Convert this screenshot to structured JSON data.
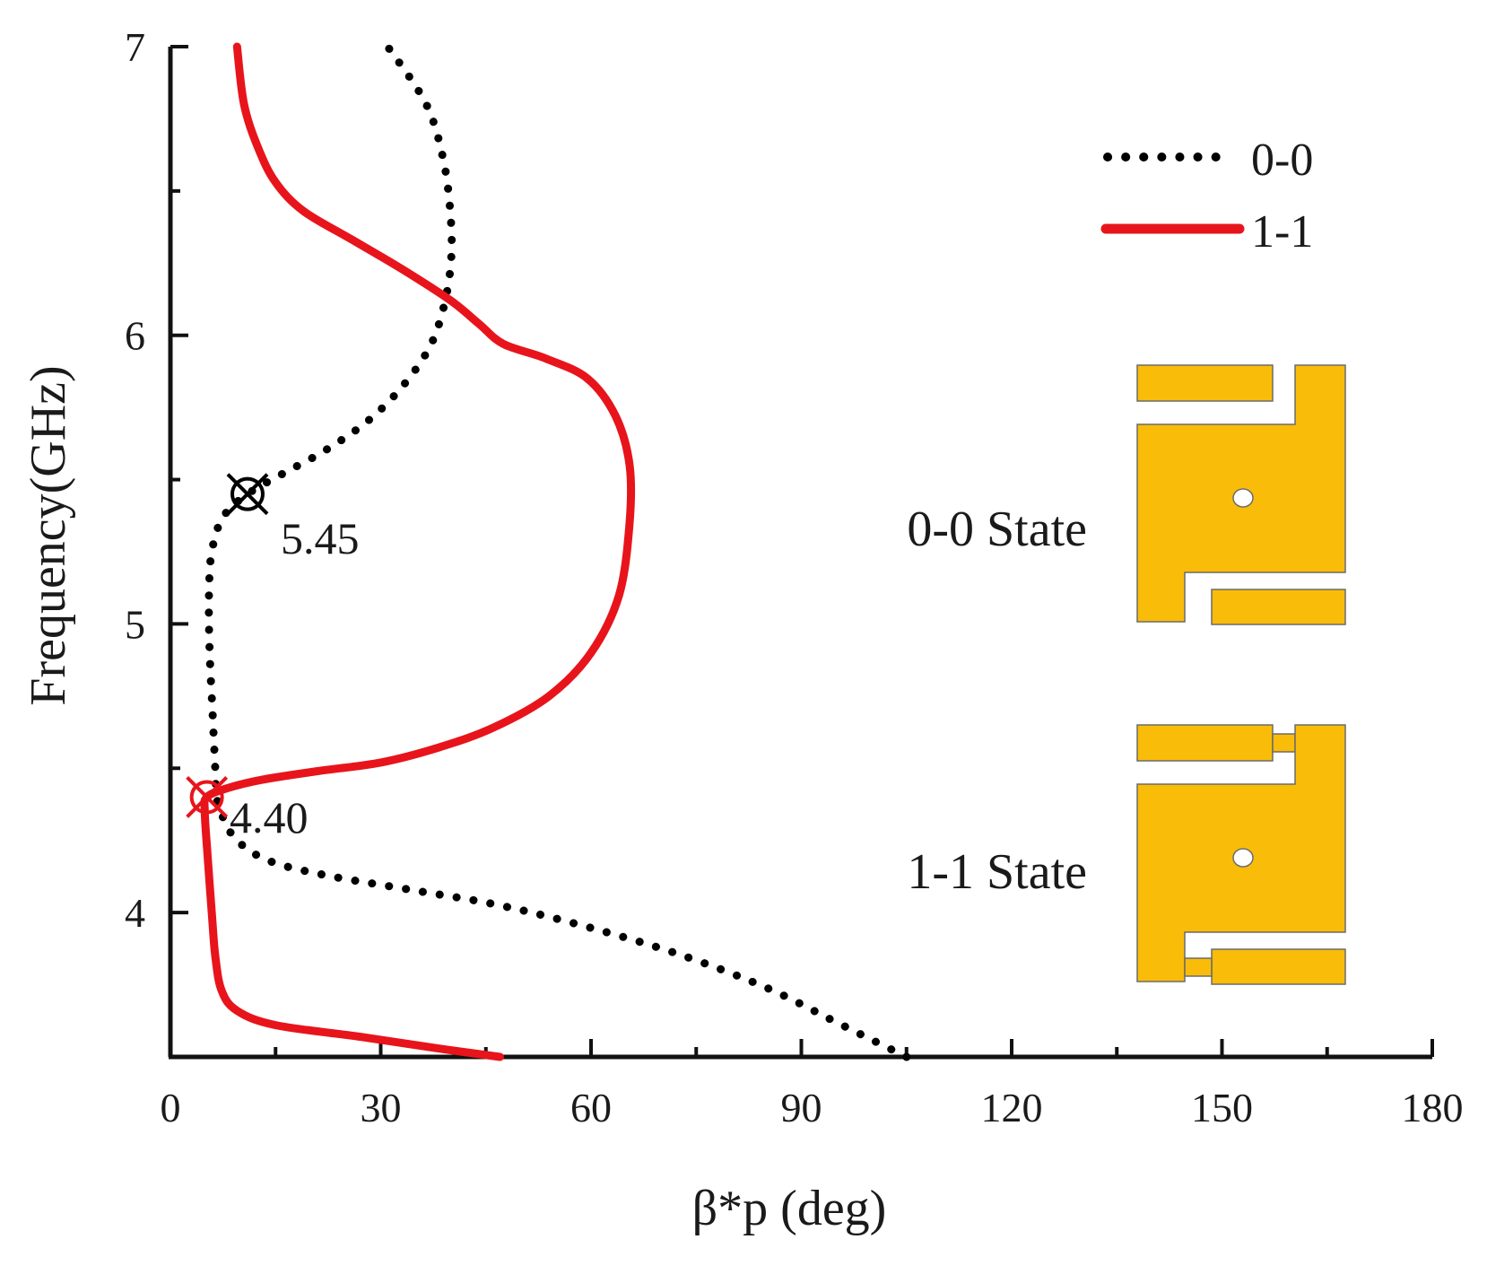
{
  "chart_data": {
    "type": "line",
    "xlabel": "β*p (deg)",
    "ylabel": "Frequency(GHz)",
    "xlim": [
      0,
      180
    ],
    "ylim": [
      3.5,
      7
    ],
    "xticks": [
      0,
      30,
      60,
      90,
      120,
      150,
      180
    ],
    "yticks": [
      4,
      5,
      6,
      7
    ],
    "grid": false,
    "legend_position": "top-right",
    "series": [
      {
        "name": "0-0",
        "style": "dotted",
        "color": "#000000",
        "points": [
          [
            105,
            3.5
          ],
          [
            95,
            3.62
          ],
          [
            85,
            3.74
          ],
          [
            72,
            3.86
          ],
          [
            58,
            3.96
          ],
          [
            46,
            4.03
          ],
          [
            34,
            4.08
          ],
          [
            22,
            4.13
          ],
          [
            14,
            4.18
          ],
          [
            9.5,
            4.25
          ],
          [
            7.5,
            4.33
          ],
          [
            6.6,
            4.4
          ],
          [
            6.4,
            4.5
          ],
          [
            6.0,
            4.7
          ],
          [
            5.6,
            4.9
          ],
          [
            5.5,
            5.1
          ],
          [
            5.9,
            5.25
          ],
          [
            7.5,
            5.37
          ],
          [
            11,
            5.45
          ],
          [
            16,
            5.52
          ],
          [
            22,
            5.6
          ],
          [
            28,
            5.7
          ],
          [
            33,
            5.82
          ],
          [
            37,
            5.96
          ],
          [
            39,
            6.1
          ],
          [
            40,
            6.25
          ],
          [
            40,
            6.4
          ],
          [
            39,
            6.6
          ],
          [
            36.5,
            6.8
          ],
          [
            31,
            7.0
          ]
        ]
      },
      {
        "name": "1-1",
        "style": "solid",
        "color": "#E8141B",
        "points": [
          [
            47,
            3.5
          ],
          [
            38,
            3.53
          ],
          [
            27,
            3.57
          ],
          [
            15,
            3.61
          ],
          [
            9.5,
            3.66
          ],
          [
            7.3,
            3.73
          ],
          [
            6.4,
            3.85
          ],
          [
            5.9,
            4.0
          ],
          [
            5.3,
            4.2
          ],
          [
            4.9,
            4.35
          ],
          [
            5.2,
            4.4
          ],
          [
            8,
            4.43
          ],
          [
            13,
            4.46
          ],
          [
            21,
            4.49
          ],
          [
            30,
            4.52
          ],
          [
            38,
            4.57
          ],
          [
            46,
            4.64
          ],
          [
            54,
            4.75
          ],
          [
            60,
            4.9
          ],
          [
            64,
            5.1
          ],
          [
            65.5,
            5.35
          ],
          [
            65.5,
            5.55
          ],
          [
            63.5,
            5.72
          ],
          [
            59.5,
            5.85
          ],
          [
            53.5,
            5.92
          ],
          [
            47.5,
            5.97
          ],
          [
            44,
            6.04
          ],
          [
            40,
            6.12
          ],
          [
            33,
            6.23
          ],
          [
            26,
            6.33
          ],
          [
            19,
            6.43
          ],
          [
            15,
            6.53
          ],
          [
            12.5,
            6.65
          ],
          [
            10.5,
            6.8
          ],
          [
            9.5,
            7.0
          ]
        ]
      }
    ],
    "annotations": [
      {
        "label": "5.45",
        "series": "0-0",
        "x": 11,
        "y": 5.45
      },
      {
        "label": "4.40",
        "series": "1-1",
        "x": 5.2,
        "y": 4.4
      }
    ]
  },
  "insets": [
    {
      "label": "0-0 State",
      "bias_blocks_visible": false
    },
    {
      "label": "1-1 State",
      "bias_blocks_visible": true
    }
  ],
  "colors": {
    "dotted_series": "#000000",
    "solid_series": "#E8141B",
    "unit_cell": "#F9BC08",
    "background": "#ffffff"
  }
}
